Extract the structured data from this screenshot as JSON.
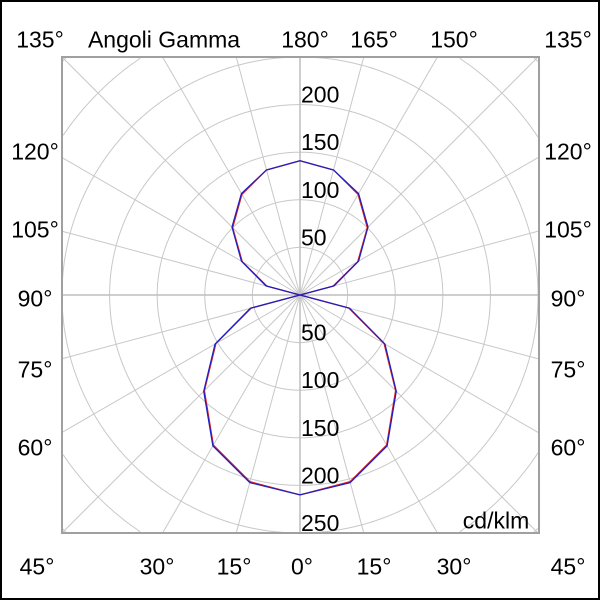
{
  "chart_data": {
    "type": "polar",
    "title": "Angoli Gamma",
    "unit_label": "cd/klm",
    "radial_ticks": [
      50,
      100,
      150,
      200,
      250
    ],
    "radial_range": [
      0,
      250
    ],
    "angle_step_deg": 15,
    "grid": true,
    "angle_labels": {
      "top": [
        "135°",
        "180°",
        "165°",
        "150°",
        "135°"
      ],
      "left": [
        "120°",
        "105°",
        "90°",
        "75°",
        "60°"
      ],
      "right": [
        "120°",
        "105°",
        "90°",
        "75°",
        "60°"
      ],
      "bottom": [
        "45°",
        "30°",
        "15°",
        "0°",
        "15°",
        "30°",
        "45°"
      ]
    },
    "gamma": [
      0,
      15,
      30,
      45,
      60,
      75,
      90,
      105,
      120,
      135,
      150,
      165,
      180
    ],
    "series": [
      {
        "color": "#e02020",
        "values": [
          210,
          203,
          182,
          142,
          102,
          53,
          0,
          36,
          70,
          100,
          122,
          136,
          141
        ]
      },
      {
        "color": "#2020c0",
        "values": [
          210,
          204,
          183,
          143,
          103,
          54,
          0,
          37,
          71,
          101,
          123,
          136,
          141
        ]
      }
    ]
  }
}
